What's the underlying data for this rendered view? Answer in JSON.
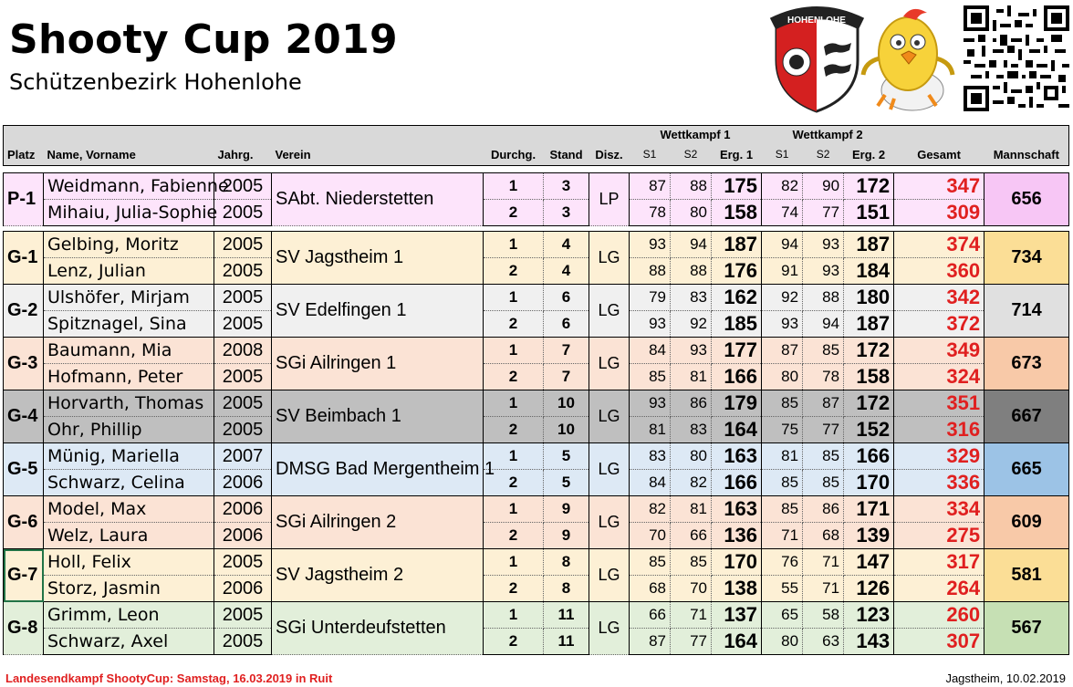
{
  "header": {
    "title": "Shooty Cup 2019",
    "subtitle": "Schützenbezirk Hohenlohe",
    "logo_text": "HOHENLOHE"
  },
  "columns": {
    "platz": "Platz",
    "name": "Name, Vorname",
    "jahrg": "Jahrg.",
    "verein": "Verein",
    "durchg": "Durchg.",
    "stand": "Stand",
    "disz": "Disz.",
    "wk1": "Wettkampf 1",
    "wk2": "Wettkampf 2",
    "s1": "S1",
    "s2": "S2",
    "erg1": "Erg. 1",
    "erg2": "Erg. 2",
    "gesamt": "Gesamt",
    "mannschaft": "Mannschaft"
  },
  "teams": [
    {
      "place": "P-1",
      "club": "SAbt. Niederstetten",
      "disz": "LP",
      "total": "656",
      "color": "#fde4fb",
      "team_color": "#f7c6f5",
      "shooters": [
        {
          "name": "Weidmann, Fabienne",
          "year": "2005",
          "durchg": "1",
          "stand": "3",
          "w1s1": "87",
          "w1s2": "88",
          "erg1": "175",
          "w2s1": "82",
          "w2s2": "90",
          "erg2": "172",
          "ges": "347"
        },
        {
          "name": "Mihaiu, Julia-Sophie",
          "year": "2005",
          "durchg": "2",
          "stand": "3",
          "w1s1": "78",
          "w1s2": "80",
          "erg1": "158",
          "w2s1": "74",
          "w2s2": "77",
          "erg2": "151",
          "ges": "309"
        }
      ]
    },
    {
      "place": "G-1",
      "club": "SV Jagstheim 1",
      "disz": "LG",
      "total": "734",
      "color": "#fdf0d5",
      "team_color": "#fbde96",
      "shooters": [
        {
          "name": "Gelbing, Moritz",
          "year": "2005",
          "durchg": "1",
          "stand": "4",
          "w1s1": "93",
          "w1s2": "94",
          "erg1": "187",
          "w2s1": "94",
          "w2s2": "93",
          "erg2": "187",
          "ges": "374"
        },
        {
          "name": "Lenz, Julian",
          "year": "2005",
          "durchg": "2",
          "stand": "4",
          "w1s1": "88",
          "w1s2": "88",
          "erg1": "176",
          "w2s1": "91",
          "w2s2": "93",
          "erg2": "184",
          "ges": "360"
        }
      ]
    },
    {
      "place": "G-2",
      "club": "SV Edelfingen 1",
      "disz": "LG",
      "total": "714",
      "color": "#f0f0f0",
      "team_color": "#e0e0e0",
      "shooters": [
        {
          "name": "Ulshöfer, Mirjam",
          "year": "2005",
          "durchg": "1",
          "stand": "6",
          "w1s1": "79",
          "w1s2": "83",
          "erg1": "162",
          "w2s1": "92",
          "w2s2": "88",
          "erg2": "180",
          "ges": "342"
        },
        {
          "name": "Spitznagel, Sina",
          "year": "2005",
          "durchg": "2",
          "stand": "6",
          "w1s1": "93",
          "w1s2": "92",
          "erg1": "185",
          "w2s1": "93",
          "w2s2": "94",
          "erg2": "187",
          "ges": "372"
        }
      ]
    },
    {
      "place": "G-3",
      "club": "SGi Ailringen 1",
      "disz": "LG",
      "total": "673",
      "color": "#fbe3d5",
      "team_color": "#f8c9a8",
      "shooters": [
        {
          "name": "Baumann, Mia",
          "year": "2008",
          "durchg": "1",
          "stand": "7",
          "w1s1": "84",
          "w1s2": "93",
          "erg1": "177",
          "w2s1": "87",
          "w2s2": "85",
          "erg2": "172",
          "ges": "349"
        },
        {
          "name": "Hofmann, Peter",
          "year": "2005",
          "durchg": "2",
          "stand": "7",
          "w1s1": "85",
          "w1s2": "81",
          "erg1": "166",
          "w2s1": "80",
          "w2s2": "78",
          "erg2": "158",
          "ges": "324"
        }
      ]
    },
    {
      "place": "G-4",
      "club": "SV Beimbach 1",
      "disz": "LG",
      "total": "667",
      "color": "#bfbfbf",
      "team_color": "#7f7f7f",
      "shooters": [
        {
          "name": "Horvarth, Thomas",
          "year": "2005",
          "durchg": "1",
          "stand": "10",
          "w1s1": "93",
          "w1s2": "86",
          "erg1": "179",
          "w2s1": "85",
          "w2s2": "87",
          "erg2": "172",
          "ges": "351"
        },
        {
          "name": "Ohr, Phillip",
          "year": "2005",
          "durchg": "2",
          "stand": "10",
          "w1s1": "81",
          "w1s2": "83",
          "erg1": "164",
          "w2s1": "75",
          "w2s2": "77",
          "erg2": "152",
          "ges": "316"
        }
      ]
    },
    {
      "place": "G-5",
      "club": "DMSG Bad Mergentheim 1",
      "disz": "LG",
      "total": "665",
      "color": "#dde9f5",
      "team_color": "#9cc3e6",
      "shooters": [
        {
          "name": "Münig, Mariella",
          "year": "2007",
          "durchg": "1",
          "stand": "5",
          "w1s1": "83",
          "w1s2": "80",
          "erg1": "163",
          "w2s1": "81",
          "w2s2": "85",
          "erg2": "166",
          "ges": "329"
        },
        {
          "name": "Schwarz, Celina",
          "year": "2006",
          "durchg": "2",
          "stand": "5",
          "w1s1": "84",
          "w1s2": "82",
          "erg1": "166",
          "w2s1": "85",
          "w2s2": "85",
          "erg2": "170",
          "ges": "336"
        }
      ]
    },
    {
      "place": "G-6",
      "club": "SGi Ailringen 2",
      "disz": "LG",
      "total": "609",
      "color": "#fbe3d5",
      "team_color": "#f8c9a8",
      "shooters": [
        {
          "name": "Model, Max",
          "year": "2006",
          "durchg": "1",
          "stand": "9",
          "w1s1": "82",
          "w1s2": "81",
          "erg1": "163",
          "w2s1": "85",
          "w2s2": "86",
          "erg2": "171",
          "ges": "334"
        },
        {
          "name": "Welz, Laura",
          "year": "2006",
          "durchg": "2",
          "stand": "9",
          "w1s1": "70",
          "w1s2": "66",
          "erg1": "136",
          "w2s1": "71",
          "w2s2": "68",
          "erg2": "139",
          "ges": "275"
        }
      ]
    },
    {
      "place": "G-7",
      "club": "SV Jagstheim 2",
      "disz": "LG",
      "total": "581",
      "color": "#fdf0d5",
      "team_color": "#fbde96",
      "shooters": [
        {
          "name": "Holl, Felix",
          "year": "2005",
          "durchg": "1",
          "stand": "8",
          "w1s1": "85",
          "w1s2": "85",
          "erg1": "170",
          "w2s1": "76",
          "w2s2": "71",
          "erg2": "147",
          "ges": "317"
        },
        {
          "name": "Storz, Jasmin",
          "year": "2006",
          "durchg": "2",
          "stand": "8",
          "w1s1": "68",
          "w1s2": "70",
          "erg1": "138",
          "w2s1": "55",
          "w2s2": "71",
          "erg2": "126",
          "ges": "264"
        }
      ]
    },
    {
      "place": "G-8",
      "club": "SGi Unterdeufstetten",
      "disz": "LG",
      "total": "567",
      "color": "#e2efda",
      "team_color": "#c6e0b4",
      "shooters": [
        {
          "name": "Grimm, Leon",
          "year": "2005",
          "durchg": "1",
          "stand": "11",
          "w1s1": "66",
          "w1s2": "71",
          "erg1": "137",
          "w2s1": "65",
          "w2s2": "58",
          "erg2": "123",
          "ges": "260"
        },
        {
          "name": "Schwarz, Axel",
          "year": "2005",
          "durchg": "2",
          "stand": "11",
          "w1s1": "87",
          "w1s2": "77",
          "erg1": "164",
          "w2s1": "80",
          "w2s2": "63",
          "erg2": "143",
          "ges": "307"
        }
      ]
    }
  ],
  "footer": {
    "left": "Landesendkampf ShootyCup: Samstag, 16.03.2019 in Ruit",
    "right": "Jagstheim, 10.02.2019"
  },
  "colors": {
    "score_red": "#e02020",
    "header_grey": "#d9d9d9",
    "selection_green": "#217346"
  }
}
